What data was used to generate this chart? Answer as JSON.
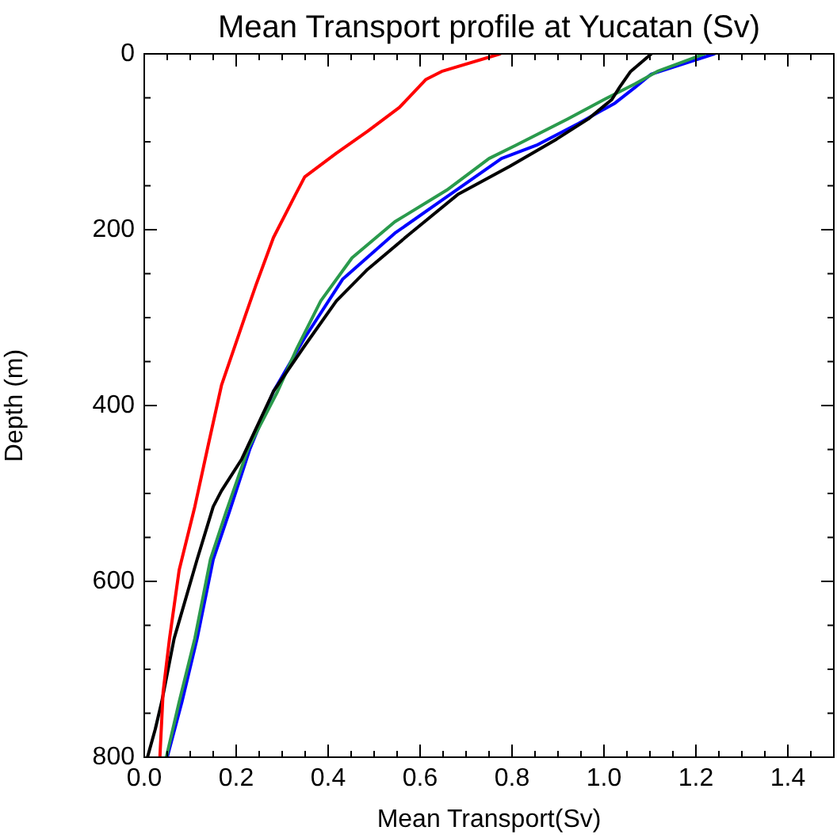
{
  "chart_data": {
    "type": "line",
    "title": "Mean Transport profile at Yucatan (Sv)",
    "xlabel": "Mean Transport(Sv)",
    "ylabel": "Depth (m)",
    "marker": "none",
    "line_style": "solid",
    "xlim": [
      0,
      1.5
    ],
    "ylim": [
      800,
      0
    ],
    "xticks": [
      {
        "value": 0,
        "label": "0.0"
      },
      {
        "value": 0.05,
        "label": null
      },
      {
        "value": 0.1,
        "label": null
      },
      {
        "value": 0.15,
        "label": null
      },
      {
        "value": 0.2,
        "label": "0.2"
      },
      {
        "value": 0.25,
        "label": null
      },
      {
        "value": 0.3,
        "label": null
      },
      {
        "value": 0.35,
        "label": null
      },
      {
        "value": 0.4,
        "label": "0.4"
      },
      {
        "value": 0.45,
        "label": null
      },
      {
        "value": 0.5,
        "label": null
      },
      {
        "value": 0.55,
        "label": null
      },
      {
        "value": 0.6,
        "label": "0.6"
      },
      {
        "value": 0.65,
        "label": null
      },
      {
        "value": 0.7,
        "label": null
      },
      {
        "value": 0.75,
        "label": null
      },
      {
        "value": 0.8,
        "label": "0.8"
      },
      {
        "value": 0.85,
        "label": null
      },
      {
        "value": 0.9,
        "label": null
      },
      {
        "value": 0.95,
        "label": null
      },
      {
        "value": 1,
        "label": "1.0"
      },
      {
        "value": 1.05,
        "label": null
      },
      {
        "value": 1.1,
        "label": null
      },
      {
        "value": 1.15,
        "label": null
      },
      {
        "value": 1.2,
        "label": "1.2"
      },
      {
        "value": 1.25,
        "label": null
      },
      {
        "value": 1.3,
        "label": null
      },
      {
        "value": 1.35,
        "label": null
      },
      {
        "value": 1.4,
        "label": "1.4"
      },
      {
        "value": 1.45,
        "label": null
      }
    ],
    "yticks": [
      0,
      {
        "value": 50,
        "label": null
      },
      {
        "value": 100,
        "label": null
      },
      {
        "value": 150,
        "label": null
      },
      200,
      {
        "value": 250,
        "label": null
      },
      {
        "value": 300,
        "label": null
      },
      {
        "value": 350,
        "label": null
      },
      400,
      {
        "value": 450,
        "label": null
      },
      {
        "value": 500,
        "label": null
      },
      {
        "value": 550,
        "label": null
      },
      600,
      {
        "value": 650,
        "label": null
      },
      {
        "value": 700,
        "label": null
      },
      {
        "value": 750,
        "label": null
      },
      800
    ],
    "series": [
      {
        "color": "#ff0000",
        "x": [
          0.774,
          0.647,
          0.613,
          0.555,
          0.486,
          0.418,
          0.349,
          0.329,
          0.281,
          0.243,
          0.219,
          0.168,
          0.14,
          0.11,
          0.076,
          0.055,
          0.041,
          0.034
        ],
        "values": [
          0,
          20,
          29,
          61,
          88,
          113,
          140,
          160,
          209,
          263,
          299,
          377,
          443,
          515,
          587,
          665,
          726,
          800
        ]
      },
      {
        "color": "#000000",
        "x": [
          1.103,
          1.058,
          1.034,
          1.017,
          0.966,
          0.897,
          0.795,
          0.682,
          0.579,
          0.486,
          0.418,
          0.349,
          0.281,
          0.212,
          0.168,
          0.15,
          0.115,
          0.065,
          0.038,
          0.024,
          0.007
        ],
        "values": [
          0,
          20,
          38,
          52,
          74,
          97,
          128,
          160,
          204,
          245,
          281,
          332,
          384,
          461,
          497,
          515,
          575,
          665,
          737,
          768,
          800
        ]
      },
      {
        "color": "#2a9a4c",
        "x": [
          1.219,
          1.116,
          1.068,
          1.0,
          0.921,
          0.808,
          0.75,
          0.658,
          0.545,
          0.452,
          0.384,
          0.332,
          0.29,
          0.226,
          0.178,
          0.144,
          0.11,
          0.076,
          0.048
        ],
        "values": [
          0,
          20,
          34,
          52,
          74,
          104,
          119,
          155,
          191,
          232,
          281,
          335,
          384,
          449,
          521,
          575,
          665,
          737,
          800
        ]
      },
      {
        "color": "#0000ff",
        "x": [
          1.24,
          1.103,
          1.068,
          1.024,
          0.945,
          0.853,
          0.777,
          0.545,
          0.432,
          0.349,
          0.281,
          0.23,
          0.185,
          0.15,
          0.115,
          0.082,
          0.05
        ],
        "values": [
          0,
          23,
          38,
          56,
          79,
          104,
          119,
          204,
          256,
          323,
          384,
          449,
          521,
          575,
          665,
          737,
          800
        ]
      }
    ]
  }
}
